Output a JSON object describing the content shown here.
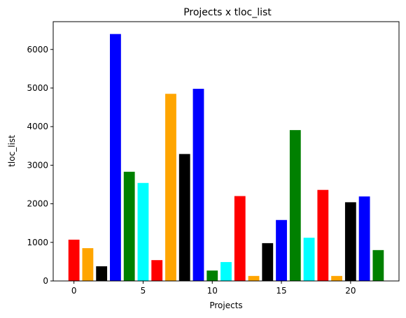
{
  "chart_data": {
    "type": "bar",
    "title": "Projects x tloc_list",
    "xlabel": "Projects",
    "ylabel": "tloc_list",
    "x": [
      0,
      1,
      2,
      3,
      4,
      5,
      6,
      7,
      8,
      9,
      10,
      11,
      12,
      13,
      14,
      15,
      16,
      17,
      18,
      19,
      20,
      21,
      22
    ],
    "values": [
      1070,
      850,
      380,
      6400,
      2830,
      2540,
      540,
      4850,
      3290,
      4980,
      270,
      490,
      2200,
      130,
      980,
      1580,
      3910,
      1120,
      2360,
      130,
      2040,
      2190,
      800
    ],
    "colors": [
      "#ff0000",
      "#ffa500",
      "#000000",
      "#0000ff",
      "#008000",
      "#00ffff",
      "#ff0000",
      "#ffa500",
      "#000000",
      "#0000ff",
      "#008000",
      "#00ffff",
      "#ff0000",
      "#ffa500",
      "#000000",
      "#0000ff",
      "#008000",
      "#00ffff",
      "#ff0000",
      "#ffa500",
      "#000000",
      "#0000ff",
      "#008000"
    ],
    "xticks": [
      0,
      5,
      10,
      15,
      20
    ],
    "yticks": [
      0,
      1000,
      2000,
      3000,
      4000,
      5000,
      6000
    ],
    "xlim": [
      -1.5,
      23.5
    ],
    "ylim": [
      0,
      6720
    ],
    "grid": false,
    "legend": "none"
  }
}
